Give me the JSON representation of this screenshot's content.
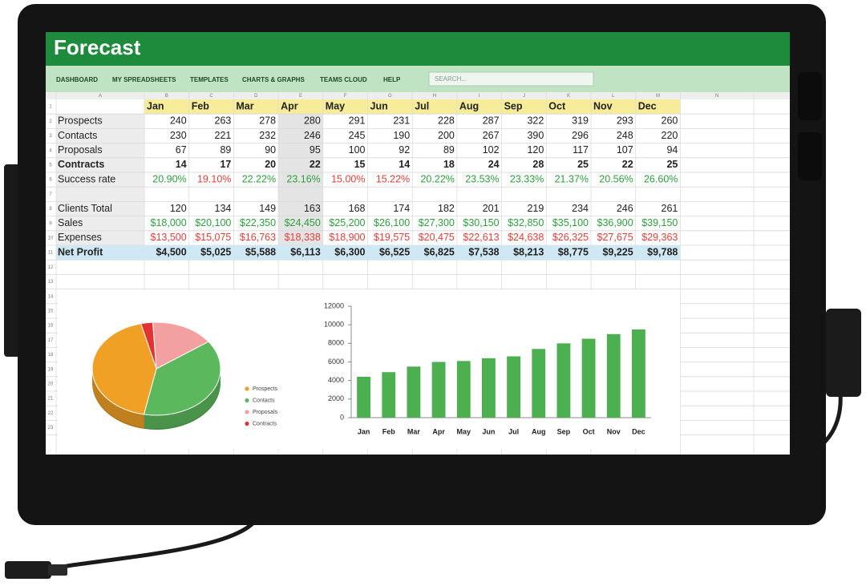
{
  "screen": {
    "title": "Forecast",
    "nav": [
      "DASHBOARD",
      "MY SPREADSHEETS",
      "TEMPLATES",
      "CHARTS & GRAPHS",
      "TEAMS CLOUD",
      "HELP"
    ],
    "search": "SEARCH..."
  },
  "sheet": {
    "columns": [
      "A",
      "B",
      "C",
      "D",
      "E",
      "F",
      "G",
      "H",
      "I",
      "J",
      "K",
      "L",
      "M",
      "N"
    ],
    "row_numbers": [
      1,
      2,
      3,
      4,
      5,
      6,
      7,
      8,
      9,
      10,
      11,
      12,
      13,
      14,
      15,
      16,
      17,
      18,
      19,
      20,
      21,
      22,
      23
    ],
    "months": [
      "Jan",
      "Feb",
      "Mar",
      "Apr",
      "May",
      "Jun",
      "Jul",
      "Aug",
      "Sep",
      "Oct",
      "Nov",
      "Dec"
    ],
    "rows": [
      {
        "label": "Prospects",
        "cells": [
          "240",
          "263",
          "278",
          "280",
          "291",
          "231",
          "228",
          "287",
          "322",
          "319",
          "293",
          "260"
        ]
      },
      {
        "label": "Contacts",
        "cells": [
          "230",
          "221",
          "232",
          "246",
          "245",
          "190",
          "200",
          "267",
          "390",
          "296",
          "248",
          "220"
        ]
      },
      {
        "label": "Proposals",
        "cells": [
          "67",
          "89",
          "90",
          "95",
          "100",
          "92",
          "89",
          "102",
          "120",
          "117",
          "107",
          "94"
        ]
      },
      {
        "label": "Contracts",
        "bold": true,
        "cells": [
          "14",
          "17",
          "20",
          "22",
          "15",
          "14",
          "18",
          "24",
          "28",
          "25",
          "22",
          "25"
        ]
      },
      {
        "label": "Success rate",
        "cells": [
          "20.90%",
          "19.10%",
          "22.22%",
          "23.16%",
          "15.00%",
          "15.22%",
          "20.22%",
          "23.53%",
          "23.33%",
          "21.37%",
          "20.56%",
          "26.60%"
        ],
        "colors": [
          "#2e9e3e",
          "#e0403a",
          "#2e9e3e",
          "#2e9e3e",
          "#e0403a",
          "#e0403a",
          "#2e9e3e",
          "#2e9e3e",
          "#2e9e3e",
          "#2e9e3e",
          "#2e9e3e",
          "#2e9e3e"
        ]
      },
      {
        "label": "Clients Total",
        "cells": [
          "120",
          "134",
          "149",
          "163",
          "168",
          "174",
          "182",
          "201",
          "219",
          "234",
          "246",
          "261"
        ]
      },
      {
        "label": "Sales",
        "color": "#2e9e3e",
        "cells": [
          "$18,000",
          "$20,100",
          "$22,350",
          "$24,450",
          "$25,200",
          "$26,100",
          "$27,300",
          "$30,150",
          "$32,850",
          "$35,100",
          "$36,900",
          "$39,150"
        ]
      },
      {
        "label": "Expenses",
        "color": "#e0403a",
        "cells": [
          "$13,500",
          "$15,075",
          "$16,763",
          "$18,338",
          "$18,900",
          "$19,575",
          "$20,475",
          "$22,613",
          "$24,638",
          "$26,325",
          "$27,675",
          "$29,363"
        ]
      },
      {
        "label": "Net Profit",
        "bold": true,
        "highlight": "#cfe8f3",
        "cells": [
          "$4,500",
          "$5,025",
          "$5,588",
          "$6,113",
          "$6,300",
          "$6,525",
          "$6,825",
          "$7,538",
          "$8,213",
          "$8,775",
          "$9,225",
          "$9,788"
        ]
      }
    ]
  },
  "chart_data": [
    {
      "type": "pie",
      "categories": [
        "Prospects",
        "Contacts",
        "Proposals",
        "Contracts"
      ],
      "values": [
        43,
        38,
        16,
        3
      ],
      "colors": [
        "#f0a025",
        "#5cb85c",
        "#f2a0a0",
        "#e23232"
      ]
    },
    {
      "type": "bar",
      "categories": [
        "Jan",
        "Feb",
        "Mar",
        "Apr",
        "May",
        "Jun",
        "Jul",
        "Aug",
        "Sep",
        "Oct",
        "Nov",
        "Dec"
      ],
      "values": [
        4400,
        4900,
        5500,
        6000,
        6100,
        6400,
        6600,
        7400,
        8000,
        8500,
        9000,
        9500
      ],
      "color": "#4caf50",
      "ylim": [
        0,
        12000
      ],
      "yticks": [
        0,
        2000,
        4000,
        6000,
        8000,
        10000,
        12000
      ]
    }
  ]
}
